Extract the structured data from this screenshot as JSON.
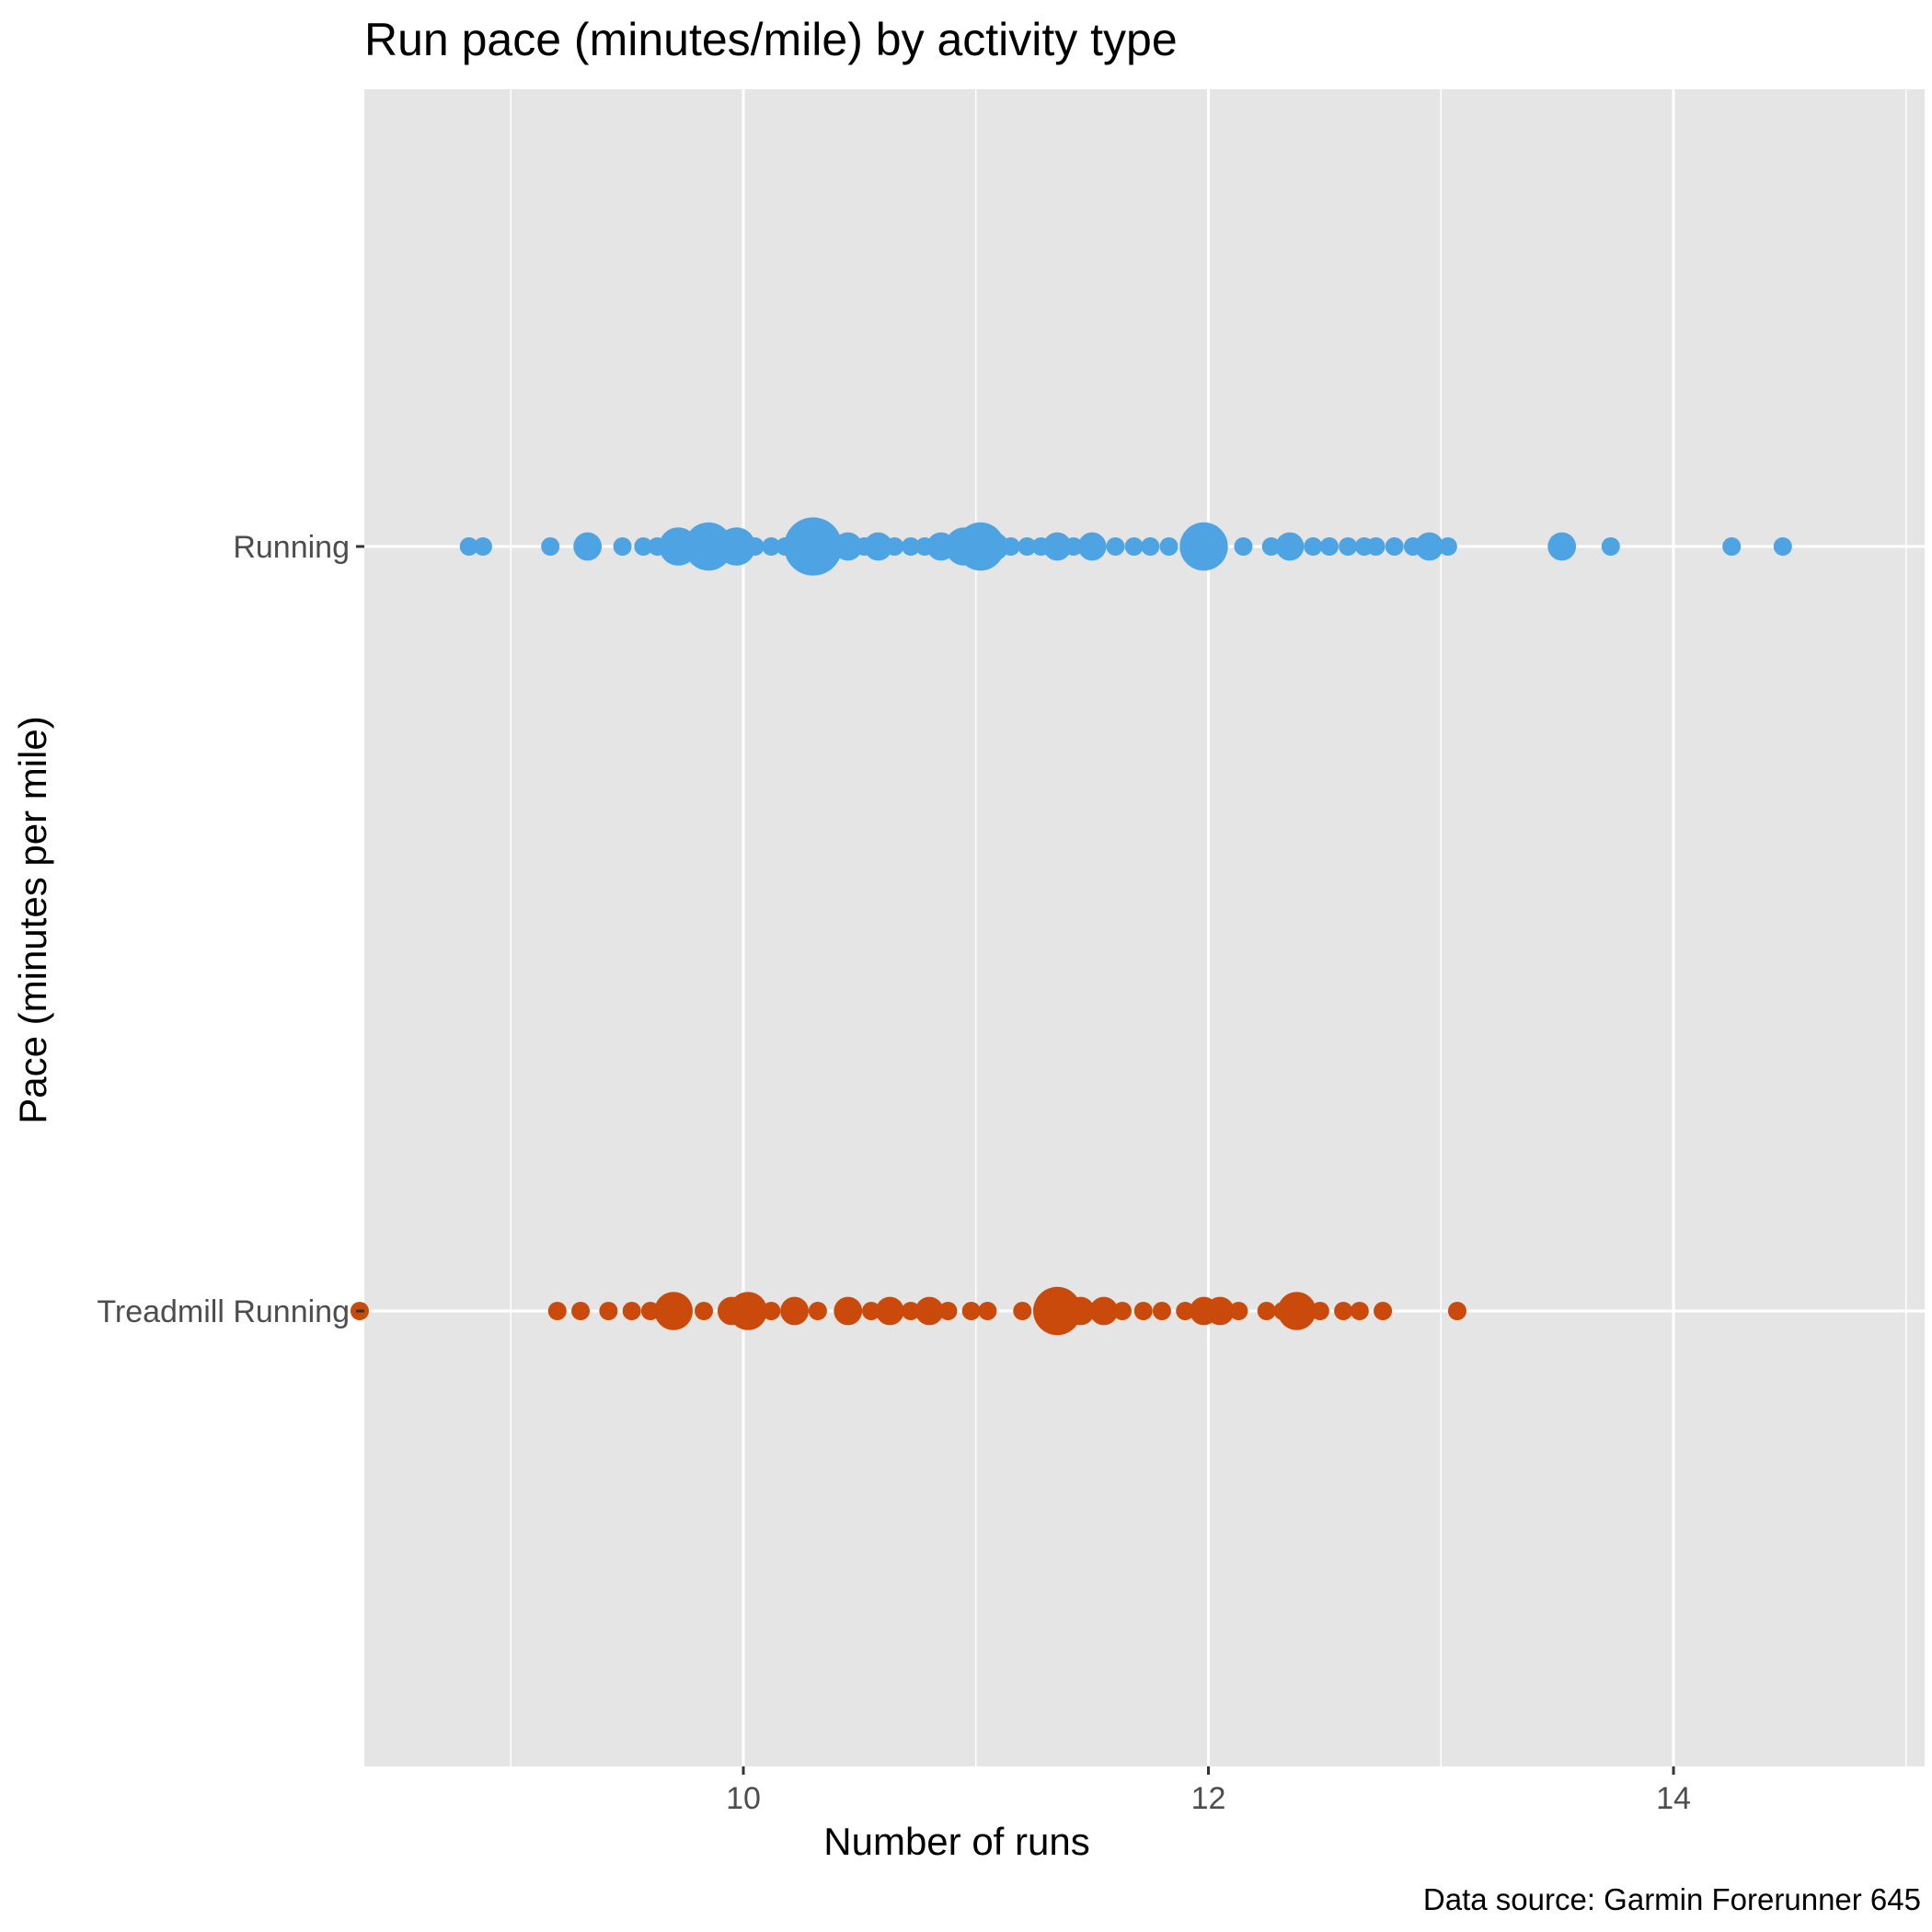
{
  "chart_data": {
    "type": "scatter",
    "title": "Run pace (minutes/mile) by activity type",
    "xlabel": "Number of runs",
    "ylabel": "Pace (minutes per mile)",
    "caption": "Data source: Garmin Forerunner 645",
    "xlim": [
      8.37,
      15.08
    ],
    "x_ticks": [
      10,
      12,
      14
    ],
    "categories": [
      "Running",
      "Treadmill Running"
    ],
    "grid": true,
    "legend": "none",
    "background": "#e5e5e5",
    "series": [
      {
        "category": "Running",
        "color": "#4ea4e3",
        "points": [
          {
            "x": 8.82,
            "n": 1
          },
          {
            "x": 8.88,
            "n": 1
          },
          {
            "x": 9.17,
            "n": 1
          },
          {
            "x": 9.33,
            "n": 2
          },
          {
            "x": 9.48,
            "n": 1
          },
          {
            "x": 9.57,
            "n": 1
          },
          {
            "x": 9.63,
            "n": 1
          },
          {
            "x": 9.72,
            "n": 3
          },
          {
            "x": 9.85,
            "n": 4
          },
          {
            "x": 9.97,
            "n": 3
          },
          {
            "x": 10.05,
            "n": 1
          },
          {
            "x": 10.12,
            "n": 1
          },
          {
            "x": 10.18,
            "n": 1
          },
          {
            "x": 10.23,
            "n": 1
          },
          {
            "x": 10.3,
            "n": 5
          },
          {
            "x": 10.38,
            "n": 2
          },
          {
            "x": 10.45,
            "n": 2
          },
          {
            "x": 10.52,
            "n": 1
          },
          {
            "x": 10.58,
            "n": 2
          },
          {
            "x": 10.65,
            "n": 1
          },
          {
            "x": 10.72,
            "n": 1
          },
          {
            "x": 10.78,
            "n": 1
          },
          {
            "x": 10.85,
            "n": 2
          },
          {
            "x": 10.9,
            "n": 1
          },
          {
            "x": 10.95,
            "n": 3
          },
          {
            "x": 11.02,
            "n": 4
          },
          {
            "x": 11.08,
            "n": 2
          },
          {
            "x": 11.15,
            "n": 1
          },
          {
            "x": 11.22,
            "n": 1
          },
          {
            "x": 11.28,
            "n": 1
          },
          {
            "x": 11.35,
            "n": 2
          },
          {
            "x": 11.42,
            "n": 1
          },
          {
            "x": 11.5,
            "n": 2
          },
          {
            "x": 11.6,
            "n": 1
          },
          {
            "x": 11.68,
            "n": 1
          },
          {
            "x": 11.75,
            "n": 1
          },
          {
            "x": 11.83,
            "n": 1
          },
          {
            "x": 11.92,
            "n": 1
          },
          {
            "x": 11.98,
            "n": 4
          },
          {
            "x": 12.15,
            "n": 1
          },
          {
            "x": 12.27,
            "n": 1
          },
          {
            "x": 12.35,
            "n": 2
          },
          {
            "x": 12.45,
            "n": 1
          },
          {
            "x": 12.52,
            "n": 1
          },
          {
            "x": 12.6,
            "n": 1
          },
          {
            "x": 12.67,
            "n": 1
          },
          {
            "x": 12.72,
            "n": 1
          },
          {
            "x": 12.8,
            "n": 1
          },
          {
            "x": 12.88,
            "n": 1
          },
          {
            "x": 12.95,
            "n": 2
          },
          {
            "x": 13.03,
            "n": 1
          },
          {
            "x": 13.52,
            "n": 2
          },
          {
            "x": 13.73,
            "n": 1
          },
          {
            "x": 14.25,
            "n": 1
          },
          {
            "x": 14.47,
            "n": 1
          }
        ]
      },
      {
        "category": "Treadmill Running",
        "color": "#c94a0a",
        "points": [
          {
            "x": 8.35,
            "n": 1
          },
          {
            "x": 9.2,
            "n": 1
          },
          {
            "x": 9.3,
            "n": 1
          },
          {
            "x": 9.42,
            "n": 1
          },
          {
            "x": 9.52,
            "n": 1
          },
          {
            "x": 9.6,
            "n": 1
          },
          {
            "x": 9.7,
            "n": 3
          },
          {
            "x": 9.83,
            "n": 1
          },
          {
            "x": 9.95,
            "n": 2
          },
          {
            "x": 10.02,
            "n": 3
          },
          {
            "x": 10.12,
            "n": 1
          },
          {
            "x": 10.22,
            "n": 2
          },
          {
            "x": 10.32,
            "n": 1
          },
          {
            "x": 10.45,
            "n": 2
          },
          {
            "x": 10.55,
            "n": 1
          },
          {
            "x": 10.63,
            "n": 2
          },
          {
            "x": 10.72,
            "n": 1
          },
          {
            "x": 10.8,
            "n": 2
          },
          {
            "x": 10.88,
            "n": 1
          },
          {
            "x": 10.98,
            "n": 1
          },
          {
            "x": 11.05,
            "n": 1
          },
          {
            "x": 11.2,
            "n": 1
          },
          {
            "x": 11.35,
            "n": 4
          },
          {
            "x": 11.45,
            "n": 2
          },
          {
            "x": 11.55,
            "n": 2
          },
          {
            "x": 11.63,
            "n": 1
          },
          {
            "x": 11.72,
            "n": 1
          },
          {
            "x": 11.8,
            "n": 1
          },
          {
            "x": 11.9,
            "n": 1
          },
          {
            "x": 11.98,
            "n": 2
          },
          {
            "x": 12.05,
            "n": 2
          },
          {
            "x": 12.13,
            "n": 1
          },
          {
            "x": 12.25,
            "n": 1
          },
          {
            "x": 12.32,
            "n": 1
          },
          {
            "x": 12.38,
            "n": 3
          },
          {
            "x": 12.48,
            "n": 1
          },
          {
            "x": 12.58,
            "n": 1
          },
          {
            "x": 12.65,
            "n": 1
          },
          {
            "x": 12.75,
            "n": 1
          },
          {
            "x": 13.07,
            "n": 1
          }
        ]
      }
    ]
  }
}
